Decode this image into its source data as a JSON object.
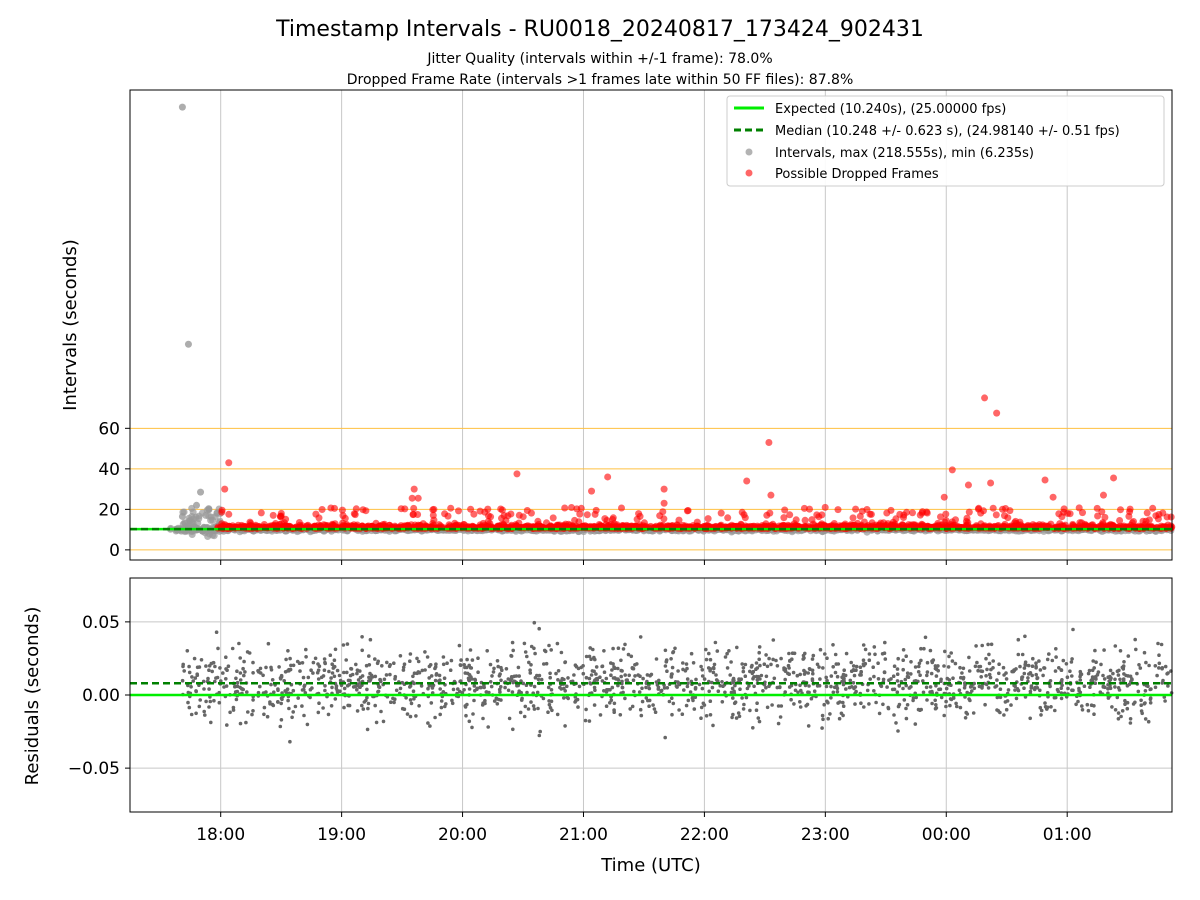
{
  "title": "Timestamp Intervals - RU0018_20240817_173424_902431",
  "subtitles": [
    "Jitter Quality (intervals within +/-1 frame): 78.0%",
    "Dropped Frame Rate (intervals >1 frames late within 50 FF files): 87.8%"
  ],
  "colors": {
    "expected": "#00ee00",
    "median": "#008000",
    "intervals": "#999999",
    "dropped": "#ff0000",
    "threshold_lines": "#ffc040",
    "residuals": "#666666",
    "grid": "#c8c8c8"
  },
  "chart_data": [
    {
      "type": "scatter",
      "ylabel": "Intervals (seconds)",
      "x_range": [
        "17:15",
        "01:52"
      ],
      "ylim": [
        -5,
        227
      ],
      "y_ticks": [
        0,
        20,
        40,
        60
      ],
      "horizontal_lines": [
        0,
        20,
        40,
        60
      ],
      "x_grid": true,
      "legend_position": "top-right",
      "legend": [
        "Expected (10.240s), (25.00000 fps)",
        "Median (10.248 +/- 0.623 s), (24.98140 +/- 0.51 fps)",
        "Intervals, max (218.555s), min (6.235s)",
        "Possible Dropped Frames"
      ],
      "expected_interval": 10.24,
      "median_interval": 10.248,
      "intervals_outliers": [
        {
          "x": "17:41",
          "y": 218.555
        },
        {
          "x": "17:44",
          "y": 101.5
        },
        {
          "x": "17:41",
          "y": 16.5
        },
        {
          "x": "17:50",
          "y": 28.5
        },
        {
          "x": "17:48",
          "y": 22.0
        }
      ],
      "dropped_frames_outliers": [
        {
          "x": "18:04",
          "y": 43.0
        },
        {
          "x": "18:02",
          "y": 30.0
        },
        {
          "x": "19:36",
          "y": 30.0
        },
        {
          "x": "19:35",
          "y": 25.5
        },
        {
          "x": "19:38",
          "y": 25.5
        },
        {
          "x": "20:27",
          "y": 37.5
        },
        {
          "x": "21:04",
          "y": 29.0
        },
        {
          "x": "21:12",
          "y": 36.0
        },
        {
          "x": "21:40",
          "y": 30.0
        },
        {
          "x": "21:40",
          "y": 23.0
        },
        {
          "x": "22:21",
          "y": 34.0
        },
        {
          "x": "22:32",
          "y": 53.0
        },
        {
          "x": "22:33",
          "y": 27.0
        },
        {
          "x": "23:59",
          "y": 26.0
        },
        {
          "x": "00:03",
          "y": 39.5
        },
        {
          "x": "00:11",
          "y": 32.0
        },
        {
          "x": "00:19",
          "y": 75.0
        },
        {
          "x": "00:22",
          "y": 33.0
        },
        {
          "x": "00:25",
          "y": 67.5
        },
        {
          "x": "00:49",
          "y": 34.5
        },
        {
          "x": "00:53",
          "y": 26.0
        },
        {
          "x": "01:23",
          "y": 35.5
        },
        {
          "x": "01:18",
          "y": 27.0
        }
      ]
    },
    {
      "type": "scatter",
      "xlabel": "Time (UTC)",
      "ylabel": "Residuals (seconds)",
      "ylim": [
        -0.08,
        0.08
      ],
      "y_ticks": [
        "0.05",
        "0.00",
        "−0.05"
      ],
      "y_tick_values": [
        0.05,
        0.0,
        -0.05
      ],
      "x_ticks": [
        "18:00",
        "19:00",
        "20:00",
        "21:00",
        "22:00",
        "23:00",
        "00:00",
        "01:00"
      ],
      "grid": true,
      "expected_residual": 0.0,
      "median_residual": 0.008,
      "residual_spread": 0.02
    }
  ]
}
